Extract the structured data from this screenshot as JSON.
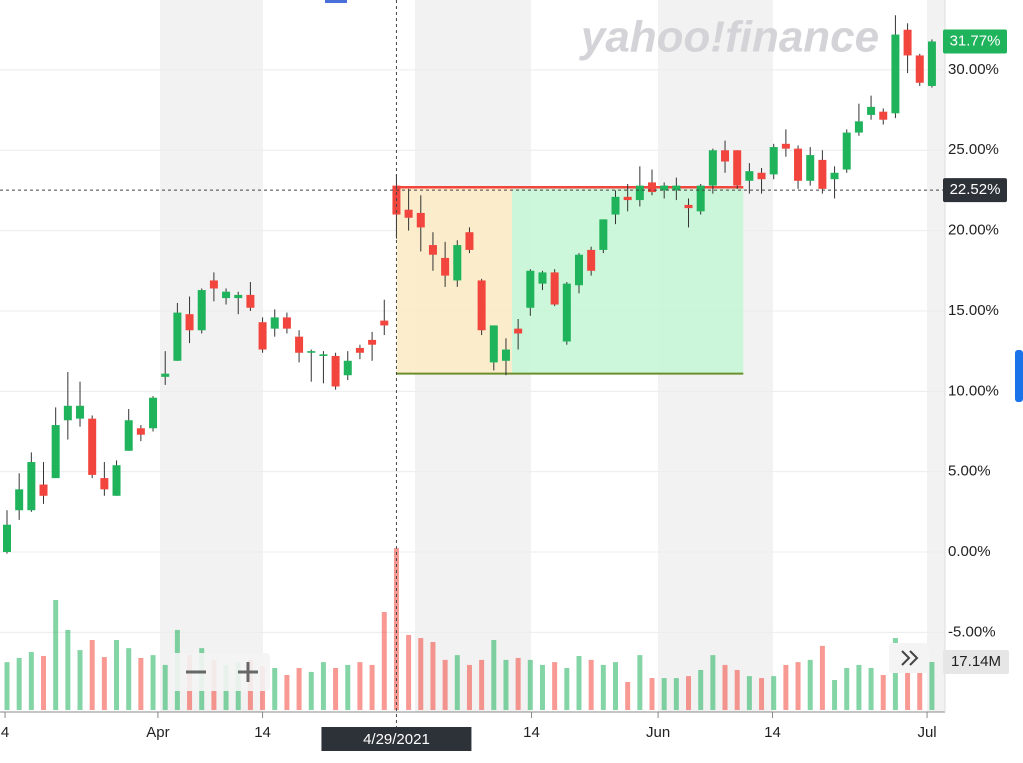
{
  "watermark": "yahoo!finance",
  "chart_data": {
    "type": "candlestick",
    "open": [
      0,
      2.6,
      2.6,
      4.2,
      4.6,
      8.2,
      8.3,
      8.3,
      4.6,
      3.5,
      6.3,
      7.7,
      7.7,
      10.9,
      11.9,
      14.8,
      13.8,
      16.9,
      15.8,
      15.8,
      16.0,
      14.3,
      13.9,
      14.6,
      13.4,
      12.4,
      12.2,
      12.2,
      11.0,
      12.7,
      13.2,
      14.4,
      22.8,
      21.3,
      21.1,
      19.1,
      18.3,
      16.9,
      19.9,
      16.9,
      11.8,
      11.9,
      13.9,
      15.2,
      16.7,
      17.4,
      13.1,
      16.6,
      18.8,
      18.8,
      21.0,
      22.1,
      21.9,
      23.0,
      22.5,
      22.5,
      21.6,
      21.2,
      22.8,
      25.0,
      25.0,
      23.1,
      23.6,
      23.5,
      25.4,
      25.1,
      23.1,
      24.4,
      23.2,
      23.8,
      26.1,
      27.2,
      27.4,
      27.3,
      32.5,
      30.9,
      29.0
    ],
    "high": [
      2.6,
      4.9,
      6.2,
      5.6,
      9.0,
      11.2,
      10.6,
      8.5,
      5.6,
      5.7,
      8.9,
      7.9,
      9.7,
      12.5,
      15.5,
      15.9,
      16.4,
      17.4,
      16.4,
      16.2,
      16.8,
      14.6,
      15.1,
      14.9,
      13.8,
      12.6,
      12.5,
      12.4,
      12.5,
      12.9,
      13.7,
      15.7,
      23.5,
      22.6,
      22.2,
      19.9,
      19.3,
      19.4,
      20.2,
      17.0,
      14.1,
      13.3,
      14.5,
      17.6,
      17.5,
      17.6,
      16.8,
      18.6,
      19.0,
      20.7,
      22.5,
      22.9,
      24.0,
      23.8,
      23.0,
      23.3,
      22.0,
      22.9,
      25.1,
      25.6,
      25.0,
      24.2,
      23.9,
      25.4,
      26.3,
      25.3,
      25.2,
      25.0,
      24.0,
      26.3,
      27.9,
      28.4,
      27.6,
      33.4,
      32.9,
      31.0,
      31.9
    ],
    "low": [
      -0.1,
      2.0,
      2.5,
      3.0,
      4.6,
      7.0,
      7.8,
      4.6,
      3.5,
      3.5,
      6.3,
      6.9,
      7.5,
      10.4,
      11.9,
      13.0,
      13.6,
      15.6,
      15.4,
      14.8,
      15.0,
      12.4,
      13.4,
      13.6,
      11.8,
      10.6,
      10.5,
      10.1,
      10.7,
      12.0,
      11.9,
      13.5,
      19.5,
      20.0,
      18.7,
      17.5,
      16.5,
      16.5,
      18.6,
      13.5,
      11.3,
      11.0,
      12.6,
      14.7,
      16.3,
      15.3,
      12.9,
      16.1,
      17.2,
      18.6,
      20.4,
      21.2,
      21.5,
      22.2,
      22.0,
      21.9,
      20.2,
      21.0,
      22.3,
      23.6,
      22.6,
      22.3,
      22.3,
      23.2,
      24.6,
      22.6,
      22.8,
      22.3,
      22.0,
      23.6,
      25.9,
      26.9,
      26.6,
      27.0,
      29.8,
      29.0,
      28.9
    ],
    "close": [
      1.7,
      3.9,
      5.6,
      3.5,
      7.9,
      9.1,
      9.1,
      4.8,
      3.9,
      5.4,
      8.2,
      7.3,
      9.6,
      11.1,
      14.9,
      13.8,
      16.3,
      16.4,
      16.2,
      16.0,
      15.2,
      12.6,
      14.6,
      13.9,
      12.4,
      12.5,
      12.3,
      10.3,
      11.9,
      12.4,
      12.9,
      14.1,
      21.0,
      20.8,
      20.2,
      18.5,
      17.2,
      19.1,
      18.8,
      13.8,
      14.1,
      12.6,
      13.6,
      17.5,
      17.4,
      15.4,
      16.7,
      18.5,
      17.5,
      20.7,
      22.1,
      21.9,
      22.8,
      22.4,
      22.8,
      22.8,
      21.4,
      22.8,
      25.0,
      24.3,
      22.8,
      23.7,
      23.2,
      25.2,
      25.1,
      23.1,
      24.7,
      22.6,
      23.6,
      26.1,
      26.8,
      27.7,
      26.9,
      32.2,
      30.9,
      29.2,
      31.77
    ],
    "volume": [
      17.1,
      18.6,
      20.7,
      19.3,
      39.3,
      28.6,
      21.4,
      25.0,
      18.9,
      25.0,
      22.1,
      18.6,
      19.6,
      16.1,
      28.6,
      19.6,
      22.1,
      17.9,
      16.1,
      17.1,
      17.9,
      15.7,
      15.0,
      12.5,
      15.0,
      13.6,
      17.1,
      15.0,
      16.1,
      17.1,
      16.1,
      35.0,
      57.8,
      26.8,
      25.7,
      24.3,
      17.9,
      19.6,
      16.1,
      17.9,
      25.0,
      17.9,
      18.6,
      17.9,
      16.1,
      17.1,
      15.0,
      19.3,
      17.9,
      16.1,
      17.1,
      10.0,
      19.6,
      11.4,
      11.4,
      11.4,
      12.1,
      14.3,
      19.6,
      16.1,
      14.3,
      12.1,
      11.4,
      12.1,
      16.1,
      17.1,
      17.9,
      22.9,
      10.7,
      15.0,
      16.1,
      15.0,
      12.5,
      25.7,
      15.0,
      14.3,
      17.14
    ],
    "up_color": "#1fb35c",
    "down_color": "#f2453d",
    "ylim": [
      -9.83,
      34.35
    ],
    "yticks": [
      {
        "value": -5,
        "label": "-5.00%"
      },
      {
        "value": 0,
        "label": "0.00%"
      },
      {
        "value": 5,
        "label": "5.00%"
      },
      {
        "value": 10,
        "label": "10.00%"
      },
      {
        "value": 15,
        "label": "15.00%"
      },
      {
        "value": 20,
        "label": "20.00%"
      },
      {
        "value": 25,
        "label": "25.00%"
      },
      {
        "value": 30,
        "label": "30.00%"
      }
    ],
    "xticks": [
      {
        "value": -0.16,
        "label": "4"
      },
      {
        "value": 12.4,
        "label": "Apr"
      },
      {
        "value": 21,
        "label": "14"
      },
      {
        "value": 43.1,
        "label": "14"
      },
      {
        "value": 53.5,
        "label": "Jun"
      },
      {
        "value": 62.9,
        "label": "14"
      },
      {
        "value": 75.6,
        "label": "Jul"
      }
    ],
    "grid": true,
    "crosshair": {
      "index": 32,
      "date": "4/29/2021",
      "value": 22.52,
      "label": "22.52%"
    },
    "last_price": {
      "value": 31.77,
      "label": "31.77%"
    },
    "last_volume": {
      "value": 17.14,
      "label": "17.14M"
    },
    "range_tool": {
      "start": 32,
      "split": 41.5,
      "end": 60.5,
      "top": 22.7,
      "bottom": 11.1
    }
  }
}
